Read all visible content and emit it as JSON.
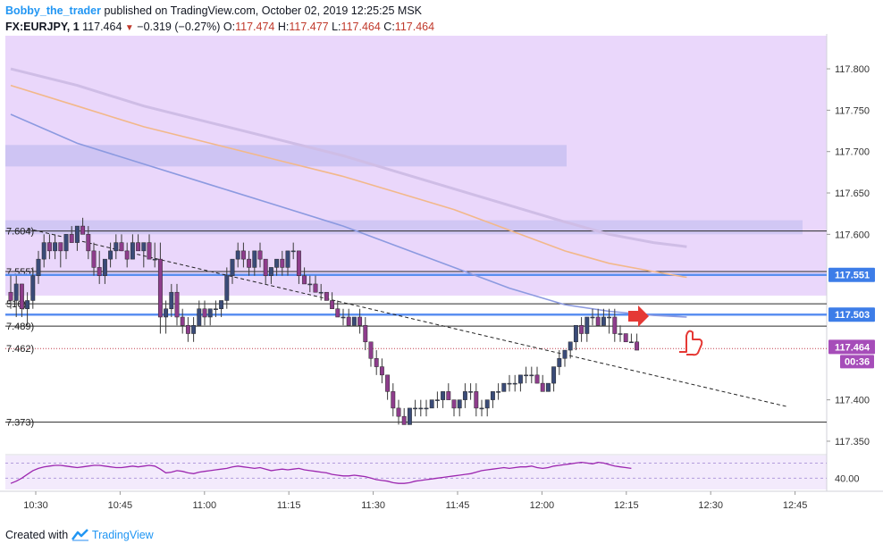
{
  "header": {
    "author": "Bobby_the_trader",
    "published_text": "published on TradingView.com, October 02, 2019 12:25:25 MSK",
    "symbol": "FX:EURJPY, 1",
    "last": "117.464",
    "change": "−0.319 (−0.27%)",
    "o_label": "O:",
    "o_value": "117.474",
    "h_label": "H:",
    "h_value": "117.477",
    "l_label": "L:",
    "l_value": "117.464",
    "c_label": "C:",
    "c_value": "117.464"
  },
  "footer": {
    "created_with": "Created with",
    "brand": "TradingView"
  },
  "colors": {
    "bull": "#3a4b78",
    "bear": "#8e3d8c",
    "zone": "#ead7fb",
    "ma_fast": "#8c9ae0",
    "ma_mid": "#f2b88a",
    "ma_slow": "#cfbde6",
    "level_blue": "#5b8ff0",
    "rsi": "#9c27b0",
    "price_tag": "#a64db9"
  },
  "chart_data": {
    "type": "candlestick",
    "title": "FX:EURJPY, 1",
    "x_tick_labels": [
      "10:30",
      "10:45",
      "11:00",
      "11:15",
      "11:30",
      "11:45",
      "12:00",
      "12:15",
      "12:30",
      "12:45"
    ],
    "y_range": [
      117.337,
      117.84
    ],
    "y_tick_labels": [
      "117.800",
      "117.750",
      "117.700",
      "117.650",
      "117.600",
      "117.400",
      "117.350"
    ],
    "price_axis_tags": [
      {
        "label": "117.551",
        "value": 117.551,
        "style": "blue"
      },
      {
        "label": "117.503",
        "value": 117.503,
        "style": "blue"
      },
      {
        "label": "117.464",
        "value": 117.464,
        "style": "price"
      }
    ],
    "countdown": "00:36",
    "horizontal_levels": [
      {
        "label": "7.604)",
        "value": 117.604
      },
      {
        "label": "7.555)",
        "value": 117.555
      },
      {
        "label": "516)",
        "value": 117.516
      },
      {
        "label": "7.489)",
        "value": 117.489
      },
      {
        "label": "7.462)",
        "value": 117.462
      },
      {
        "label": "7.373)",
        "value": 117.373
      }
    ],
    "ohlc": [
      [
        117.53,
        117.55,
        117.51,
        117.52
      ],
      [
        117.52,
        117.55,
        117.5,
        117.54
      ],
      [
        117.54,
        117.54,
        117.5,
        117.51
      ],
      [
        117.51,
        117.53,
        117.49,
        117.52
      ],
      [
        117.52,
        117.56,
        117.51,
        117.55
      ],
      [
        117.55,
        117.58,
        117.54,
        117.57
      ],
      [
        117.57,
        117.6,
        117.56,
        117.59
      ],
      [
        117.59,
        117.6,
        117.57,
        117.58
      ],
      [
        117.58,
        117.6,
        117.57,
        117.59
      ],
      [
        117.59,
        117.59,
        117.56,
        117.58
      ],
      [
        117.58,
        117.6,
        117.57,
        117.6
      ],
      [
        117.6,
        117.61,
        117.59,
        117.59
      ],
      [
        117.59,
        117.61,
        117.58,
        117.61
      ],
      [
        117.61,
        117.62,
        117.6,
        117.6
      ],
      [
        117.6,
        117.61,
        117.57,
        117.58
      ],
      [
        117.58,
        117.59,
        117.55,
        117.56
      ],
      [
        117.56,
        117.58,
        117.54,
        117.55
      ],
      [
        117.55,
        117.57,
        117.54,
        117.57
      ],
      [
        117.57,
        117.59,
        117.56,
        117.58
      ],
      [
        117.58,
        117.6,
        117.57,
        117.59
      ],
      [
        117.59,
        117.6,
        117.58,
        117.58
      ],
      [
        117.58,
        117.59,
        117.56,
        117.57
      ],
      [
        117.57,
        117.6,
        117.57,
        117.59
      ],
      [
        117.59,
        117.6,
        117.58,
        117.58
      ],
      [
        117.58,
        117.59,
        117.56,
        117.59
      ],
      [
        117.59,
        117.6,
        117.57,
        117.57
      ],
      [
        117.57,
        117.59,
        117.56,
        117.57
      ],
      [
        117.57,
        117.59,
        117.48,
        117.5
      ],
      [
        117.5,
        117.52,
        117.48,
        117.51
      ],
      [
        117.51,
        117.54,
        117.5,
        117.53
      ],
      [
        117.53,
        117.54,
        117.49,
        117.5
      ],
      [
        117.5,
        117.51,
        117.48,
        117.49
      ],
      [
        117.49,
        117.5,
        117.47,
        117.48
      ],
      [
        117.48,
        117.5,
        117.47,
        117.49
      ],
      [
        117.49,
        117.52,
        117.49,
        117.51
      ],
      [
        117.51,
        117.52,
        117.49,
        117.5
      ],
      [
        117.5,
        117.51,
        117.49,
        117.51
      ],
      [
        117.51,
        117.52,
        117.5,
        117.51
      ],
      [
        117.51,
        117.52,
        117.5,
        117.52
      ],
      [
        117.52,
        117.56,
        117.51,
        117.55
      ],
      [
        117.55,
        117.57,
        117.54,
        117.57
      ],
      [
        117.57,
        117.59,
        117.56,
        117.58
      ],
      [
        117.58,
        117.59,
        117.56,
        117.57
      ],
      [
        117.57,
        117.58,
        117.55,
        117.56
      ],
      [
        117.56,
        117.58,
        117.55,
        117.58
      ],
      [
        117.58,
        117.59,
        117.56,
        117.57
      ],
      [
        117.57,
        117.57,
        117.54,
        117.55
      ],
      [
        117.55,
        117.56,
        117.54,
        117.56
      ],
      [
        117.56,
        117.57,
        117.55,
        117.57
      ],
      [
        117.57,
        117.58,
        117.55,
        117.56
      ],
      [
        117.56,
        117.58,
        117.55,
        117.58
      ],
      [
        117.58,
        117.59,
        117.57,
        117.58
      ],
      [
        117.58,
        117.58,
        117.54,
        117.55
      ],
      [
        117.55,
        117.56,
        117.54,
        117.54
      ],
      [
        117.54,
        117.55,
        117.53,
        117.54
      ],
      [
        117.54,
        117.55,
        117.53,
        117.53
      ],
      [
        117.53,
        117.54,
        117.52,
        117.53
      ],
      [
        117.53,
        117.53,
        117.52,
        117.52
      ],
      [
        117.52,
        117.53,
        117.51,
        117.51
      ],
      [
        117.51,
        117.52,
        117.5,
        117.5
      ],
      [
        117.5,
        117.51,
        117.49,
        117.5
      ],
      [
        117.5,
        117.51,
        117.49,
        117.49
      ],
      [
        117.49,
        117.5,
        117.49,
        117.5
      ],
      [
        117.5,
        117.51,
        117.48,
        117.49
      ],
      [
        117.49,
        117.5,
        117.46,
        117.47
      ],
      [
        117.47,
        117.47,
        117.44,
        117.45
      ],
      [
        117.45,
        117.46,
        117.43,
        117.44
      ],
      [
        117.44,
        117.45,
        117.42,
        117.43
      ],
      [
        117.43,
        117.43,
        117.4,
        117.41
      ],
      [
        117.41,
        117.42,
        117.38,
        117.39
      ],
      [
        117.39,
        117.4,
        117.37,
        117.38
      ],
      [
        117.38,
        117.39,
        117.37,
        117.37
      ],
      [
        117.37,
        117.39,
        117.37,
        117.39
      ],
      [
        117.39,
        117.4,
        117.38,
        117.39
      ],
      [
        117.39,
        117.4,
        117.38,
        117.39
      ],
      [
        117.39,
        117.4,
        117.38,
        117.39
      ],
      [
        117.39,
        117.4,
        117.39,
        117.4
      ],
      [
        117.4,
        117.41,
        117.39,
        117.4
      ],
      [
        117.4,
        117.41,
        117.39,
        117.41
      ],
      [
        117.41,
        117.42,
        117.4,
        117.4
      ],
      [
        117.4,
        117.4,
        117.38,
        117.39
      ],
      [
        117.39,
        117.4,
        117.38,
        117.4
      ],
      [
        117.4,
        117.42,
        117.39,
        117.41
      ],
      [
        117.41,
        117.42,
        117.4,
        117.41
      ],
      [
        117.41,
        117.42,
        117.38,
        117.39
      ],
      [
        117.39,
        117.4,
        117.38,
        117.39
      ],
      [
        117.39,
        117.4,
        117.38,
        117.4
      ],
      [
        117.4,
        117.41,
        117.39,
        117.41
      ],
      [
        117.41,
        117.42,
        117.4,
        117.41
      ],
      [
        117.41,
        117.42,
        117.41,
        117.42
      ],
      [
        117.42,
        117.43,
        117.41,
        117.42
      ],
      [
        117.42,
        117.43,
        117.41,
        117.42
      ],
      [
        117.42,
        117.43,
        117.41,
        117.43
      ],
      [
        117.43,
        117.44,
        117.42,
        117.43
      ],
      [
        117.43,
        117.44,
        117.42,
        117.43
      ],
      [
        117.43,
        117.44,
        117.42,
        117.42
      ],
      [
        117.42,
        117.43,
        117.41,
        117.41
      ],
      [
        117.41,
        117.42,
        117.41,
        117.42
      ],
      [
        117.42,
        117.44,
        117.41,
        117.44
      ],
      [
        117.44,
        117.46,
        117.43,
        117.45
      ],
      [
        117.45,
        117.46,
        117.44,
        117.46
      ],
      [
        117.46,
        117.47,
        117.45,
        117.47
      ],
      [
        117.47,
        117.49,
        117.46,
        117.49
      ],
      [
        117.49,
        117.5,
        117.47,
        117.48
      ],
      [
        117.48,
        117.5,
        117.47,
        117.5
      ],
      [
        117.5,
        117.51,
        117.49,
        117.5
      ],
      [
        117.5,
        117.51,
        117.49,
        117.49
      ],
      [
        117.49,
        117.51,
        117.49,
        117.5
      ],
      [
        117.5,
        117.51,
        117.48,
        117.5
      ],
      [
        117.5,
        117.51,
        117.47,
        117.48
      ],
      [
        117.48,
        117.49,
        117.47,
        117.48
      ],
      [
        117.48,
        117.48,
        117.47,
        117.47
      ],
      [
        117.47,
        117.48,
        117.47,
        117.47
      ],
      [
        117.47,
        117.48,
        117.46,
        117.46
      ]
    ],
    "moving_averages": [
      {
        "color": "ma_slow",
        "points": [
          [
            0,
            117.8
          ],
          [
            12,
            117.78
          ],
          [
            24,
            117.755
          ],
          [
            36,
            117.735
          ],
          [
            48,
            117.715
          ],
          [
            60,
            117.695
          ],
          [
            70,
            117.675
          ],
          [
            80,
            117.655
          ],
          [
            90,
            117.635
          ],
          [
            100,
            117.615
          ],
          [
            108,
            117.6
          ],
          [
            116,
            117.59
          ],
          [
            122,
            117.585
          ]
        ]
      },
      {
        "color": "ma_mid",
        "points": [
          [
            0,
            117.78
          ],
          [
            12,
            117.755
          ],
          [
            24,
            117.73
          ],
          [
            36,
            117.71
          ],
          [
            48,
            117.69
          ],
          [
            60,
            117.67
          ],
          [
            70,
            117.65
          ],
          [
            80,
            117.63
          ],
          [
            90,
            117.605
          ],
          [
            100,
            117.58
          ],
          [
            108,
            117.565
          ],
          [
            116,
            117.555
          ],
          [
            122,
            117.548
          ]
        ]
      },
      {
        "color": "ma_fast",
        "points": [
          [
            0,
            117.745
          ],
          [
            12,
            117.71
          ],
          [
            24,
            117.685
          ],
          [
            36,
            117.66
          ],
          [
            48,
            117.635
          ],
          [
            60,
            117.61
          ],
          [
            70,
            117.585
          ],
          [
            80,
            117.56
          ],
          [
            90,
            117.535
          ],
          [
            100,
            117.515
          ],
          [
            108,
            117.507
          ],
          [
            116,
            117.502
          ],
          [
            122,
            117.5
          ]
        ]
      }
    ],
    "trendline": {
      "from": [
        3,
        117.607
      ],
      "to": [
        140,
        117.392
      ]
    },
    "rsi": {
      "y_tick_label": "40.00",
      "values": [
        33,
        36,
        40,
        45,
        50,
        53,
        55,
        56,
        57,
        57,
        56,
        55,
        54,
        55,
        56,
        57,
        57,
        56,
        55,
        54,
        54,
        55,
        56,
        55,
        56,
        57,
        56,
        52,
        47,
        48,
        50,
        49,
        47,
        46,
        48,
        49,
        50,
        51,
        52,
        53,
        55,
        56,
        55,
        54,
        53,
        54,
        52,
        50,
        51,
        52,
        51,
        52,
        53,
        51,
        50,
        49,
        48,
        47,
        45,
        44,
        43,
        43,
        44,
        43,
        42,
        40,
        38,
        37,
        36,
        34,
        33,
        33,
        34,
        36,
        37,
        38,
        39,
        40,
        41,
        42,
        43,
        44,
        45,
        46,
        48,
        50,
        51,
        52,
        53,
        54,
        53,
        54,
        55,
        55,
        56,
        54,
        53,
        54,
        56,
        57,
        58,
        59,
        60,
        61,
        60,
        59,
        61,
        60,
        58,
        56,
        55,
        54,
        53
      ]
    }
  }
}
